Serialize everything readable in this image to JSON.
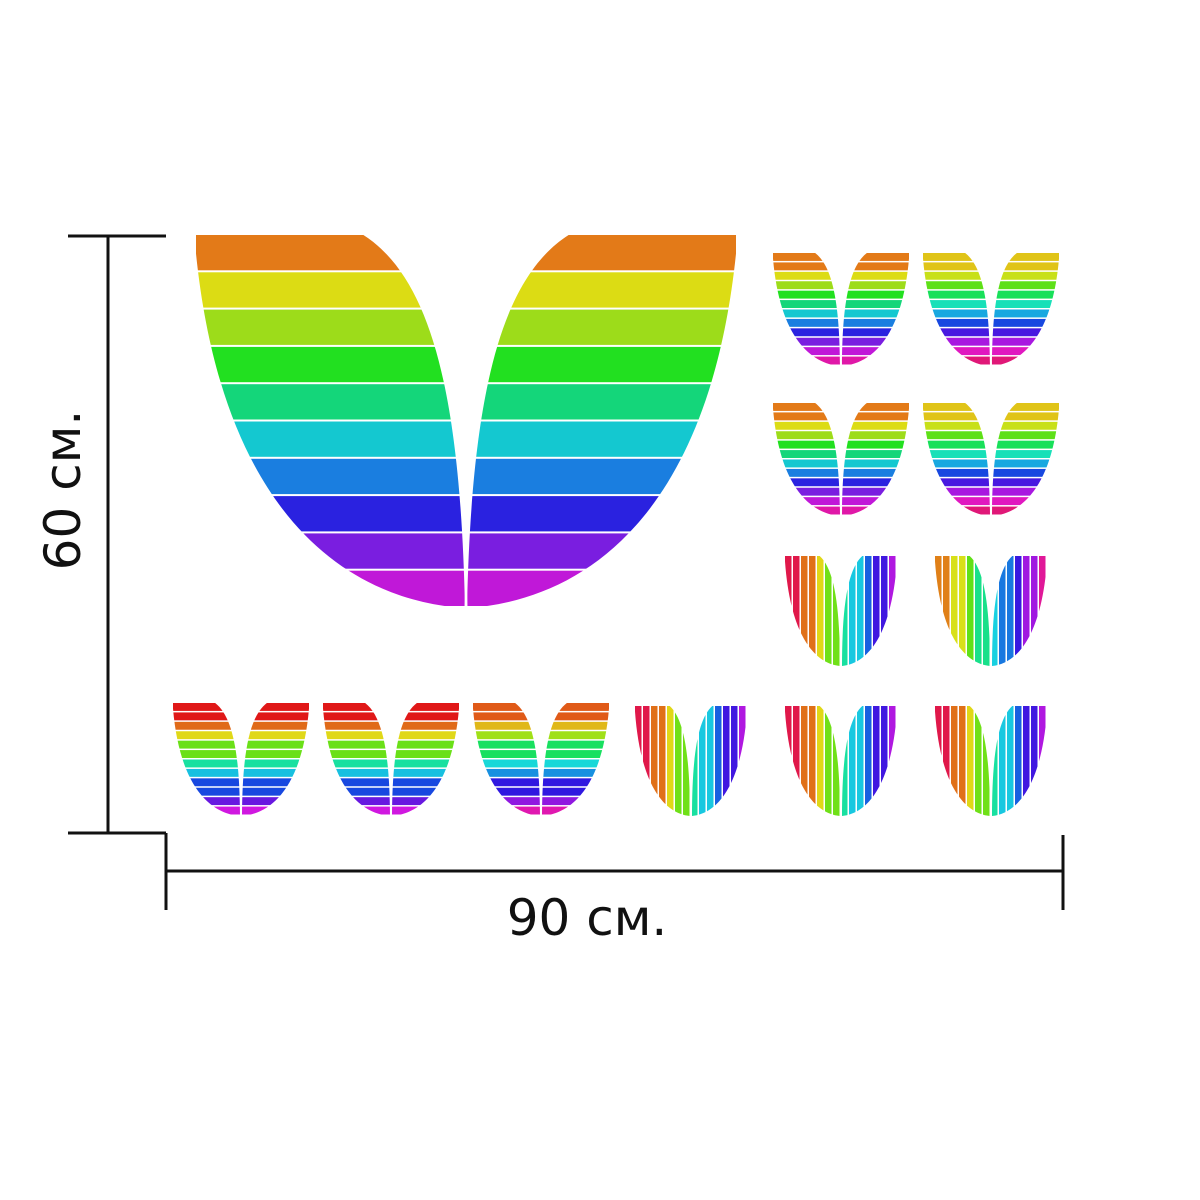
{
  "dimensions": {
    "height_label": "60 см.",
    "width_label": "90 см."
  },
  "sticker_sheet": {
    "ink_color": "#111111",
    "divider_color": "#ffffff",
    "stickers": [
      {
        "size": "large",
        "stripes": "horizontal",
        "palette": "warm-top"
      },
      {
        "size": "small",
        "stripes": "horizontal",
        "palette": "warm-top"
      },
      {
        "size": "small",
        "stripes": "horizontal",
        "palette": "yellow-top"
      },
      {
        "size": "small",
        "stripes": "horizontal",
        "palette": "warm-top"
      },
      {
        "size": "small",
        "stripes": "horizontal",
        "palette": "yellow-top"
      },
      {
        "size": "small",
        "stripes": "vertical",
        "palette": "red-left"
      },
      {
        "size": "small",
        "stripes": "vertical",
        "palette": "orange-left"
      },
      {
        "size": "small",
        "stripes": "horizontal",
        "palette": "red-top"
      },
      {
        "size": "small",
        "stripes": "horizontal",
        "palette": "red-top"
      },
      {
        "size": "small",
        "stripes": "horizontal",
        "palette": "orange-top"
      },
      {
        "size": "small",
        "stripes": "vertical",
        "palette": "red-left"
      },
      {
        "size": "small",
        "stripes": "vertical",
        "palette": "red-left"
      },
      {
        "size": "small",
        "stripes": "vertical",
        "palette": "red-left"
      }
    ]
  }
}
